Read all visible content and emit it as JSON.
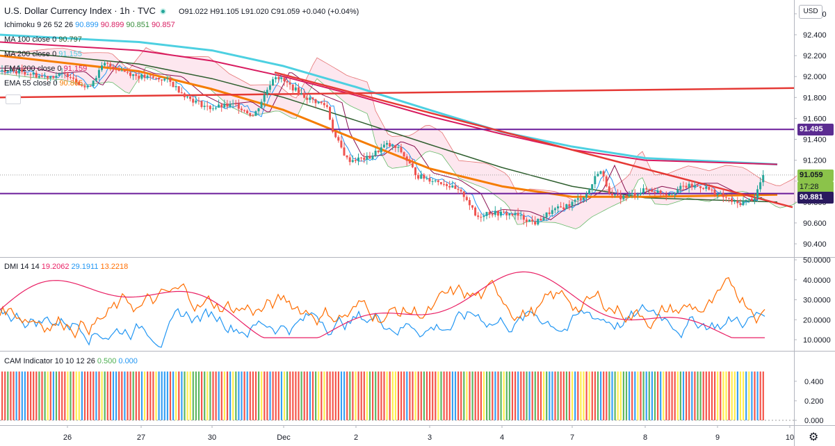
{
  "header": {
    "title": "U.S. Dollar Currency Index · 1h · TVC",
    "ohlc": "O91.022 H91.105 L91.020 C91.059 +0.040 (+0.04%)"
  },
  "indicators": [
    {
      "name": "Ichimoku 9 26 52 26",
      "values": [
        {
          "v": "90.899",
          "c": "#2196f3"
        },
        {
          "v": "90.899",
          "c": "#d81b60"
        },
        {
          "v": "90.851",
          "c": "#388e3c"
        },
        {
          "v": "90.857",
          "c": "#d81b60"
        }
      ]
    },
    {
      "name": "MA 100 close 0",
      "values": [
        {
          "v": "90.797",
          "c": "#2e5e2e"
        }
      ]
    },
    {
      "name": "MA 200 close 0",
      "values": [
        {
          "v": "91.155",
          "c": "#4dd0e1"
        }
      ]
    },
    {
      "name": "EMA 200 close 0",
      "values": [
        {
          "v": "91.159",
          "c": "#d81b60"
        }
      ]
    },
    {
      "name": "EMA 55 close 0",
      "values": [
        {
          "v": "90.865",
          "c": "#f57c00"
        }
      ]
    }
  ],
  "dmi": {
    "name": "DMI 14 14",
    "values": [
      {
        "v": "19.2062",
        "c": "#e91e63"
      },
      {
        "v": "29.1911",
        "c": "#2196f3"
      },
      {
        "v": "13.2218",
        "c": "#ff6d00"
      }
    ]
  },
  "cam": {
    "name": "CAM Indicator 10 10 12 26",
    "values": [
      {
        "v": "0.500",
        "c": "#4caf50"
      },
      {
        "v": "0.000",
        "c": "#2196f3"
      }
    ]
  },
  "price_axis": {
    "currency": "USD",
    "ticks": [
      "92.600",
      "92.400",
      "92.200",
      "92.000",
      "91.800",
      "91.600",
      "91.400",
      "91.200",
      "91.000",
      "90.800",
      "90.600",
      "90.400"
    ],
    "labels": {
      "level_high": "91.495",
      "current": "91.059",
      "countdown": "17:28",
      "level_low": "90.881"
    }
  },
  "dmi_axis": {
    "ticks": [
      "50.0000",
      "40.0000",
      "30.0000",
      "20.0000",
      "10.0000"
    ]
  },
  "cam_axis": {
    "ticks": [
      "0.400",
      "0.200",
      "0.000"
    ]
  },
  "time_axis": {
    "ticks": [
      "26",
      "27",
      "30",
      "Dec",
      "2",
      "3",
      "4",
      "7",
      "8",
      "9",
      "10"
    ]
  },
  "colors": {
    "up": "#26a69a",
    "down": "#ef5350",
    "horizontal_level": "#6a1b9a",
    "trendline": "#e53935",
    "ma200": "#4dd0e1",
    "ema200": "#d81b60",
    "ma100": "#2e5e2e",
    "ema55": "#f57c00"
  },
  "chart_data": {
    "type": "line",
    "title": "U.S. Dollar Currency Index · 1h · TVC",
    "ylim": [
      90.3,
      92.7
    ],
    "series": [
      {
        "name": "MA 200 close 0",
        "x": [
          "26",
          "27",
          "30",
          "Dec",
          "2",
          "3",
          "4",
          "7",
          "8",
          "9"
        ],
        "values": [
          92.4,
          92.33,
          92.25,
          92.1,
          91.9,
          91.68,
          91.47,
          91.33,
          91.22,
          91.16
        ]
      },
      {
        "name": "EMA 200 close 0",
        "x": [
          "26",
          "27",
          "30",
          "Dec",
          "2",
          "3",
          "4",
          "7",
          "8",
          "9"
        ],
        "values": [
          92.33,
          92.25,
          92.15,
          92.0,
          91.82,
          91.62,
          91.45,
          91.3,
          91.2,
          91.16
        ]
      },
      {
        "name": "MA 100 close 0",
        "x": [
          "26",
          "27",
          "30",
          "Dec",
          "2",
          "3",
          "4",
          "7",
          "8",
          "9"
        ],
        "values": [
          92.25,
          92.12,
          91.98,
          91.8,
          91.58,
          91.35,
          91.13,
          90.95,
          90.84,
          90.8
        ]
      },
      {
        "name": "EMA 55 close 0",
        "x": [
          "26",
          "27",
          "30",
          "Dec",
          "2",
          "3",
          "4",
          "7",
          "8",
          "9"
        ],
        "values": [
          92.2,
          92.05,
          91.88,
          91.68,
          91.4,
          91.12,
          90.95,
          90.85,
          90.85,
          90.87
        ]
      },
      {
        "name": "Close",
        "x": [
          "26",
          "27",
          "30",
          "Dec",
          "2",
          "3",
          "4",
          "7",
          "8",
          "9"
        ],
        "values": [
          92.05,
          91.95,
          91.7,
          91.85,
          91.25,
          90.95,
          90.7,
          90.85,
          90.9,
          91.06
        ]
      }
    ]
  }
}
